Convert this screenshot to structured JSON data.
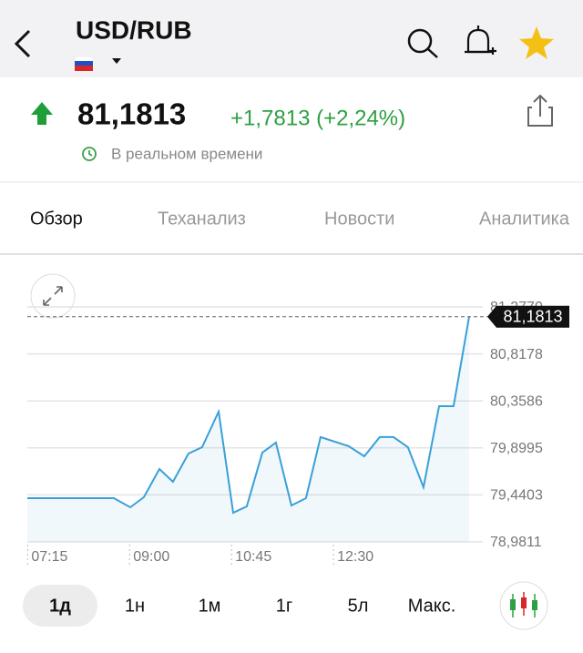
{
  "header": {
    "title": "USD/RUB",
    "price": "81,1813",
    "change": "+1,7813 (+2,24%)",
    "status": "В реальном времени"
  },
  "tabs": [
    "Обзор",
    "Теханализ",
    "Новости",
    "Аналитика"
  ],
  "ranges": [
    "1д",
    "1н",
    "1м",
    "1г",
    "5л",
    "Макс."
  ],
  "chart_data": {
    "type": "line",
    "color": "#3aa0d8",
    "x": [
      "07:10",
      "08:39",
      "08:56",
      "09:10",
      "09:26",
      "09:40",
      "09:56",
      "10:10",
      "10:27",
      "10:42",
      "10:56",
      "11:12",
      "11:26",
      "11:42",
      "11:57",
      "12:12",
      "12:41",
      "12:57",
      "13:13",
      "13:27",
      "13:42",
      "13:58",
      "14:14",
      "14:29",
      "14:45"
    ],
    "values": [
      79.408,
      79.408,
      79.319,
      79.417,
      79.693,
      79.568,
      79.844,
      79.907,
      80.254,
      79.266,
      79.328,
      79.853,
      79.951,
      79.337,
      79.408,
      80.005,
      79.916,
      79.818,
      80.005,
      80.005,
      79.907,
      79.515,
      80.307,
      80.307,
      81.1813
    ],
    "current_label": "81,1813",
    "xlim": [
      "07:10",
      "14:45"
    ],
    "xticks": [
      "07:15",
      "09:00",
      "10:45",
      "12:30"
    ],
    "ylim": [
      78.9811,
      81.277
    ],
    "yticks": [
      {
        "value": 78.9811,
        "label": "78,9811"
      },
      {
        "value": 79.4403,
        "label": "79,4403"
      },
      {
        "value": 79.8995,
        "label": "79,8995"
      },
      {
        "value": 80.3586,
        "label": "80,3586"
      },
      {
        "value": 80.8178,
        "label": "80,8178"
      },
      {
        "value": 81.277,
        "label": "81,2770"
      }
    ],
    "grid": true
  }
}
